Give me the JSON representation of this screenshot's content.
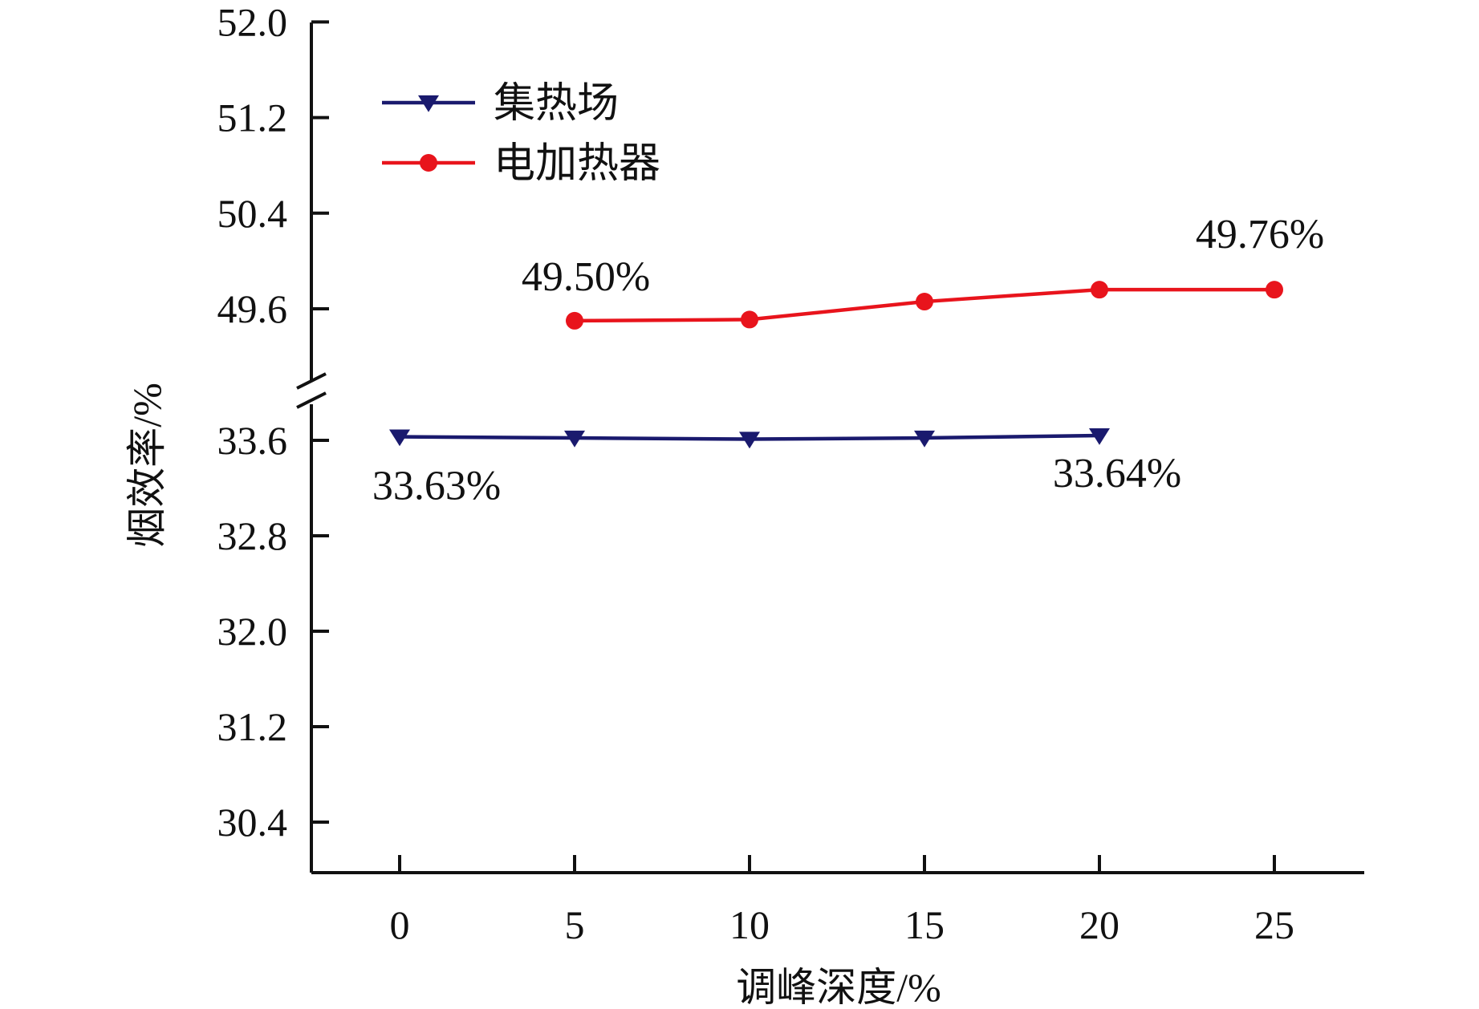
{
  "chart_data": {
    "type": "line",
    "xlabel": "调峰深度/%",
    "ylabel": "烟效率/%",
    "x_ticks": [
      0,
      5,
      10,
      15,
      20,
      25
    ],
    "x_tick_labels": [
      "0",
      "5",
      "10",
      "15",
      "20",
      "25"
    ],
    "y_ticks": [
      30.4,
      31.2,
      32.0,
      32.8,
      33.6,
      49.6,
      50.4,
      51.2,
      52.0
    ],
    "y_tick_labels": [
      "30.4",
      "31.2",
      "32.0",
      "32.8",
      "33.6",
      "49.6",
      "50.4",
      "51.2",
      "52.0"
    ],
    "y_axis_break": [
      34.0,
      49.2
    ],
    "ylim_lower": [
      30.0,
      34.0
    ],
    "ylim_upper": [
      49.2,
      52.0
    ],
    "legend_position": "top-left",
    "series": [
      {
        "name": "集热场",
        "color": "#1a1a6e",
        "marker": "triangle-down",
        "x": [
          0,
          5,
          10,
          15,
          20
        ],
        "y": [
          33.63,
          33.62,
          33.61,
          33.62,
          33.64
        ]
      },
      {
        "name": "电加热器",
        "color": "#e8141c",
        "marker": "circle",
        "x": [
          5,
          10,
          15,
          20,
          25
        ],
        "y": [
          49.5,
          49.51,
          49.66,
          49.76,
          49.76
        ]
      }
    ],
    "annotations": [
      {
        "text": "33.63%",
        "series": 0,
        "point": 0
      },
      {
        "text": "33.64%",
        "series": 0,
        "point": 4
      },
      {
        "text": "49.50%",
        "series": 1,
        "point": 0
      },
      {
        "text": "49.76%",
        "series": 1,
        "point": 4
      }
    ]
  }
}
